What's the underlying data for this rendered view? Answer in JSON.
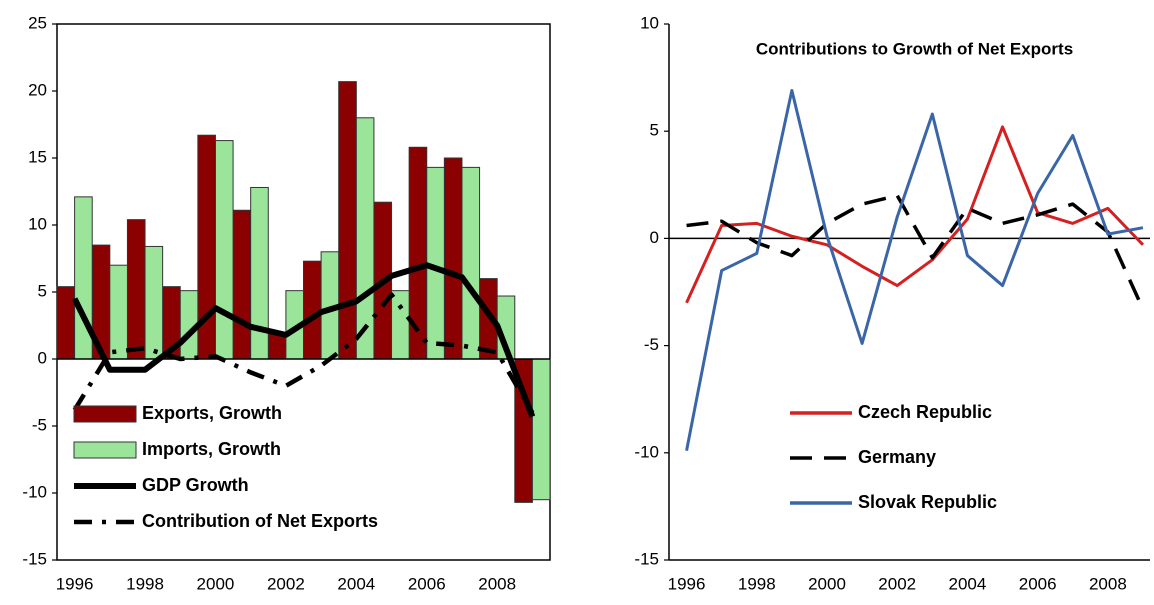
{
  "chart_data": [
    {
      "type": "bar",
      "x": [
        1996,
        1997,
        1998,
        1999,
        2000,
        2001,
        2002,
        2003,
        2004,
        2005,
        2006,
        2007,
        2008,
        2009
      ],
      "xlim": [
        1995.5,
        2009.5
      ],
      "xticks": [
        1996,
        1998,
        2000,
        2002,
        2004,
        2006,
        2008
      ],
      "ylim": [
        -15,
        25
      ],
      "yticks": [
        -15,
        -10,
        -5,
        0,
        5,
        10,
        15,
        20,
        25
      ],
      "series": [
        {
          "name": "Exports, Growth",
          "type": "bar",
          "color": "#8b0000",
          "values": [
            5.4,
            8.5,
            10.4,
            5.4,
            16.7,
            11.1,
            1.9,
            7.3,
            20.7,
            11.7,
            15.8,
            15.0,
            6.0,
            -10.7
          ]
        },
        {
          "name": "Imports, Growth",
          "type": "bar",
          "color": "#9be59b",
          "values": [
            12.1,
            7.0,
            8.4,
            5.1,
            16.3,
            12.8,
            5.1,
            8.0,
            18.0,
            5.1,
            14.3,
            14.3,
            4.7,
            -10.5
          ]
        },
        {
          "name": "GDP Growth",
          "type": "line",
          "line_style": "solid",
          "color": "#000000",
          "values": [
            4.5,
            -0.8,
            -0.8,
            1.2,
            3.8,
            2.4,
            1.8,
            3.5,
            4.3,
            6.2,
            7.0,
            6.1,
            2.5,
            -4.3
          ]
        },
        {
          "name": "Contribution of Net Exports",
          "type": "line",
          "line_style": "dash-dot",
          "color": "#000000",
          "values": [
            -3.8,
            0.5,
            0.8,
            0.0,
            0.2,
            -1.0,
            -2.0,
            -0.5,
            1.5,
            4.8,
            1.2,
            1.0,
            0.5,
            -4.0
          ]
        }
      ]
    },
    {
      "type": "line",
      "title": "Contributions to Growth of Net Exports",
      "x": [
        1996,
        1997,
        1998,
        1999,
        2000,
        2001,
        2002,
        2003,
        2004,
        2005,
        2006,
        2007,
        2008,
        2009
      ],
      "xlim": [
        1995.5,
        2009.2
      ],
      "xticks": [
        1996,
        1998,
        2000,
        2002,
        2004,
        2006,
        2008
      ],
      "ylim": [
        -15,
        10
      ],
      "yticks": [
        -15,
        -10,
        -5,
        0,
        5,
        10
      ],
      "series": [
        {
          "name": "Czech Republic",
          "line_style": "solid",
          "color": "#d42020",
          "values": [
            -3.0,
            0.6,
            0.7,
            0.1,
            -0.3,
            -1.3,
            -2.2,
            -1.0,
            0.9,
            5.2,
            1.2,
            0.7,
            1.4,
            -0.3
          ]
        },
        {
          "name": "Germany",
          "line_style": "dashed",
          "color": "#000000",
          "values": [
            0.6,
            0.8,
            -0.2,
            -0.8,
            0.7,
            1.6,
            2.0,
            -0.9,
            1.4,
            0.7,
            1.1,
            1.6,
            0.3,
            -3.3
          ]
        },
        {
          "name": "Slovak Republic",
          "line_style": "solid",
          "color": "#3a66a8",
          "values": [
            -9.9,
            -1.5,
            -0.7,
            6.9,
            0.1,
            -4.9,
            1.0,
            5.8,
            -0.8,
            -2.2,
            2.1,
            4.8,
            0.2,
            0.5
          ]
        }
      ]
    }
  ]
}
